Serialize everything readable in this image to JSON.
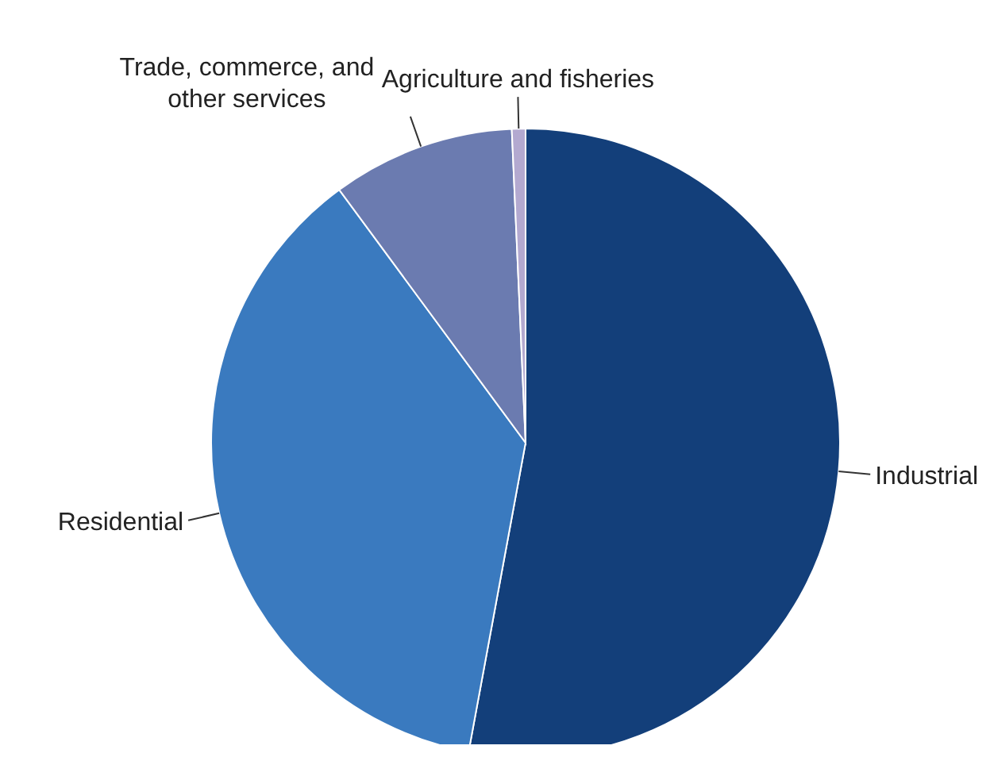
{
  "chart_data": {
    "type": "pie",
    "categories": [
      "Industrial",
      "Residential",
      "Trade, commerce, and other services",
      "Agriculture and fisheries"
    ],
    "values": [
      52.9,
      37.0,
      9.4,
      0.7
    ],
    "colors": [
      "#133f7a",
      "#3a7abf",
      "#6b7bb0",
      "#b3a9d0"
    ],
    "legend": false
  }
}
